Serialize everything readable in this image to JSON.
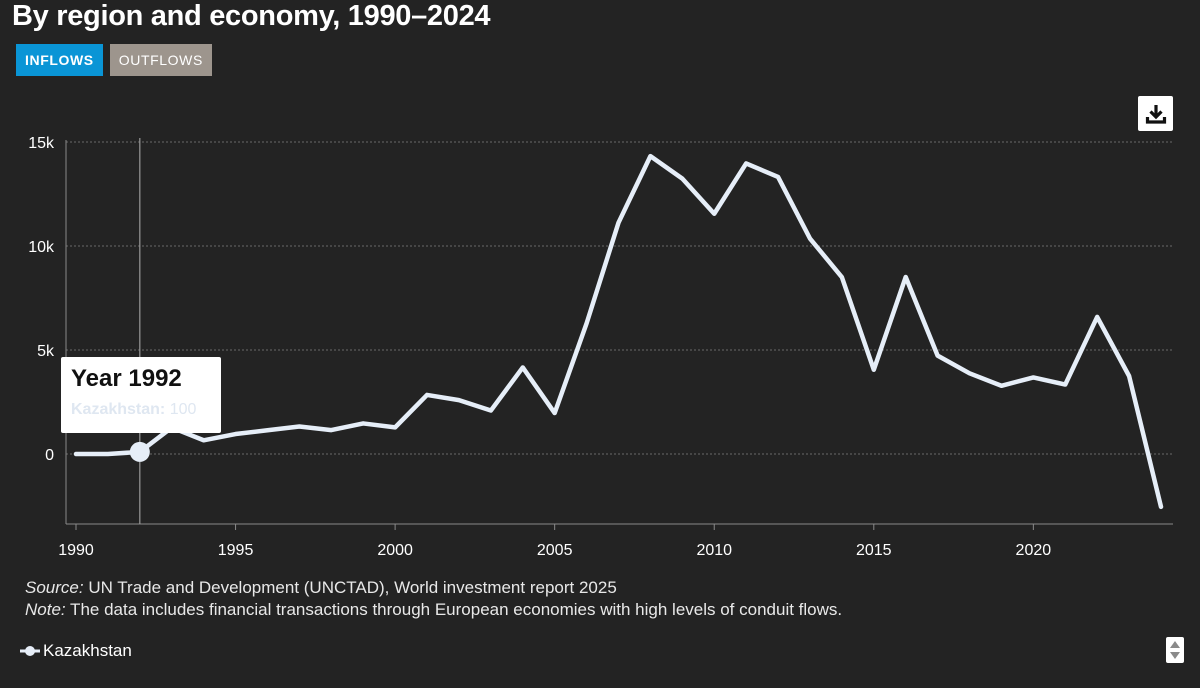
{
  "title": "By region and economy, 1990–2024",
  "tabs": {
    "inflows": "INFLOWS",
    "outflows": "OUTFLOWS"
  },
  "download_icon": "download-icon",
  "tooltip": {
    "title": "Year 1992",
    "series_label": "Kazakhstan:",
    "value": "100"
  },
  "source": {
    "source_label": "Source:",
    "source_text": " UN Trade and Development (UNCTAD), World investment report 2025",
    "note_label": "Note:",
    "note_text": " The data includes financial transactions through European economies with high levels of conduit flows."
  },
  "legend": {
    "label": "Kazakhstan"
  },
  "colors": {
    "background": "#232323",
    "line": "#e6eef8",
    "inflows_tab": "#0a95d6",
    "outflows_tab": "#9d958d"
  },
  "chart_data": {
    "type": "line",
    "title": "By region and economy, 1990–2024",
    "xlabel": "",
    "ylabel": "",
    "x": [
      1990,
      1991,
      1992,
      1993,
      1994,
      1995,
      1996,
      1997,
      1998,
      1999,
      2000,
      2001,
      2002,
      2003,
      2004,
      2005,
      2006,
      2007,
      2008,
      2009,
      2010,
      2011,
      2012,
      2013,
      2014,
      2015,
      2016,
      2017,
      2018,
      2019,
      2020,
      2021,
      2022,
      2023,
      2024
    ],
    "series": [
      {
        "name": "Kazakhstan",
        "values": [
          0,
          0,
          100,
          1270,
          660,
          960,
          1140,
          1320,
          1150,
          1470,
          1280,
          2840,
          2590,
          2090,
          4160,
          1970,
          6280,
          11120,
          14320,
          13240,
          11550,
          13970,
          13320,
          10360,
          8500,
          4050,
          8510,
          4730,
          3880,
          3280,
          3680,
          3340,
          6590,
          3750,
          -2540
        ]
      }
    ],
    "xlim": [
      1990,
      2024
    ],
    "ylim": [
      -3400,
      15000
    ],
    "x_ticks": [
      "1990",
      "1995",
      "2000",
      "2005",
      "2010",
      "2015",
      "2020"
    ],
    "y_ticks": [
      "15k",
      "10k",
      "5k",
      "0"
    ],
    "y_tick_values": [
      15000,
      10000,
      5000,
      0
    ],
    "grid": true,
    "legend_position": "bottom-left",
    "highlighted_x": 1992
  }
}
